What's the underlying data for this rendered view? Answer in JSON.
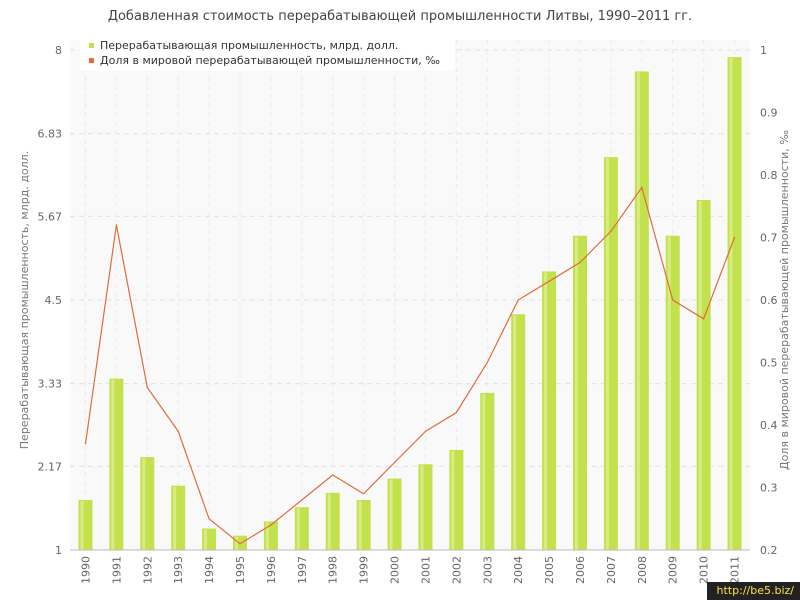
{
  "chart_data": {
    "type": "bar",
    "title": "Добавленная стоимость перерабатывающей промышленности Литвы, 1990–2011 гг.",
    "ylabel_left": "Перерабатывающая промышленность, млрд. долл.",
    "ylabel_right": "Доля в мировой перерабатывающей промышленности, ‰",
    "categories": [
      "1990",
      "1991",
      "1992",
      "1993",
      "1994",
      "1995",
      "1996",
      "1997",
      "1998",
      "1999",
      "2000",
      "2001",
      "2002",
      "2003",
      "2004",
      "2005",
      "2006",
      "2007",
      "2008",
      "2009",
      "2010",
      "2011"
    ],
    "y_left": {
      "min": 1,
      "max": 8,
      "ticks": [
        "1",
        "2.17",
        "3.33",
        "4.5",
        "5.67",
        "6.83",
        "8"
      ]
    },
    "y_right": {
      "min": 0.2,
      "max": 1,
      "ticks": [
        "0.2",
        "0.3",
        "0.4",
        "0.5",
        "0.6",
        "0.7",
        "0.8",
        "0.9",
        "1"
      ]
    },
    "grid": true,
    "legend_position": "top-left",
    "series": [
      {
        "name": "Перерабатывающая промышленность, млрд. долл.",
        "type": "bar",
        "axis": "left",
        "color": "#c3e04d",
        "values": [
          1.7,
          3.4,
          2.3,
          1.9,
          1.3,
          1.2,
          1.4,
          1.6,
          1.8,
          1.7,
          2.0,
          2.2,
          2.4,
          3.2,
          4.3,
          4.9,
          5.4,
          6.5,
          7.7,
          5.4,
          5.9,
          7.9
        ]
      },
      {
        "name": "Доля в мировой перерабатывающей промышленности, ‰",
        "type": "line",
        "axis": "right",
        "color": "#e06c3c",
        "values": [
          0.37,
          0.72,
          0.46,
          0.39,
          0.25,
          0.21,
          0.24,
          0.28,
          0.32,
          0.29,
          0.34,
          0.39,
          0.42,
          0.5,
          0.6,
          0.63,
          0.66,
          0.71,
          0.78,
          0.6,
          0.57,
          0.7
        ]
      }
    ]
  },
  "watermark": "http://be5.biz/"
}
